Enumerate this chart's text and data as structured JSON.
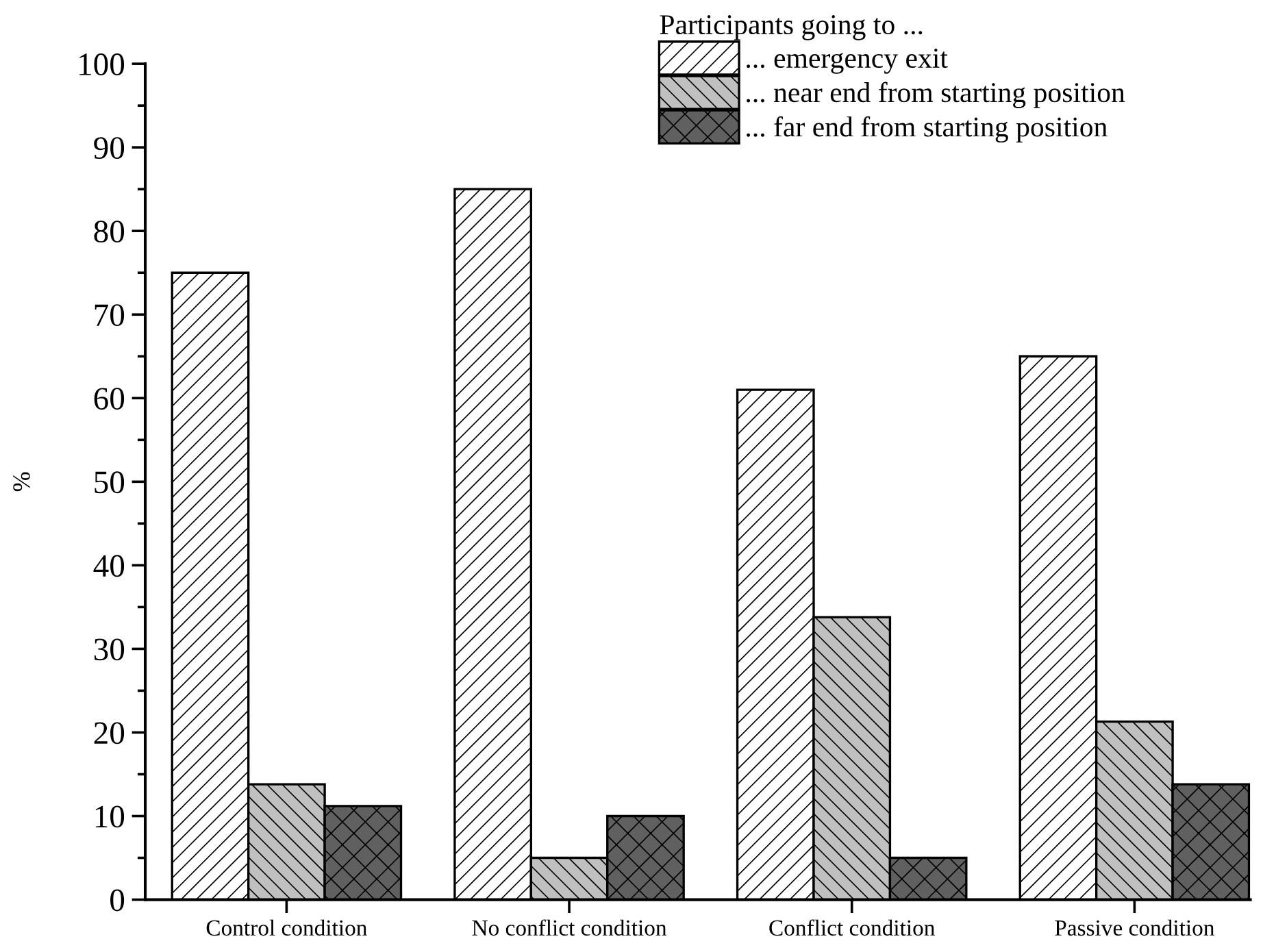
{
  "chart_data": {
    "type": "bar",
    "categories": [
      "Control condition",
      "No conflict condition",
      "Conflict condition",
      "Passive condition"
    ],
    "ylabel": "%",
    "legend_title": "Participants going to ...",
    "series": [
      {
        "name": "... emergency exit",
        "color": "#ffffff",
        "values": [
          75,
          85,
          61,
          65
        ]
      },
      {
        "name": "... near end from starting position",
        "color": "#c0c0c0",
        "values": [
          13.8,
          5,
          33.8,
          21.3
        ]
      },
      {
        "name": "... far end from starting position",
        "color": "#606060",
        "values": [
          11.2,
          10,
          5,
          13.8
        ]
      }
    ],
    "ylim": [
      0,
      100
    ],
    "yticks": [
      0,
      10,
      20,
      30,
      40,
      50,
      60,
      70,
      80,
      90,
      100
    ],
    "grid": false,
    "legend": "top right"
  }
}
